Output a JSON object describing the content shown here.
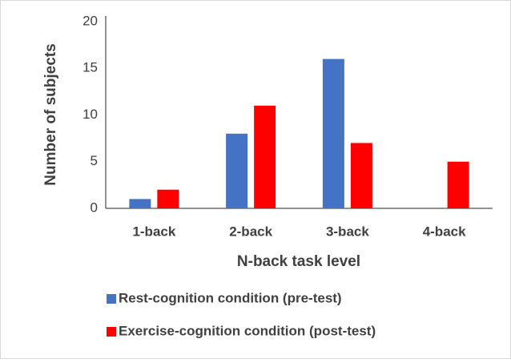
{
  "chart_data": {
    "type": "bar",
    "categories": [
      "1-back",
      "2-back",
      "3-back",
      "4-back"
    ],
    "series": [
      {
        "name": "Rest-cognition condition (pre-test)",
        "color": "#4472c4",
        "values": [
          1,
          8,
          16,
          0
        ]
      },
      {
        "name": "Exercise-cognition condition (post-test)",
        "color": "#ff0000",
        "values": [
          2,
          11,
          7,
          5
        ]
      }
    ],
    "xlabel": "N-back task level",
    "ylabel": "Number of subjects",
    "ylim": [
      0,
      20
    ],
    "yticks": [
      0,
      5,
      10,
      15,
      20
    ],
    "grid": false,
    "legend": "bottom"
  }
}
